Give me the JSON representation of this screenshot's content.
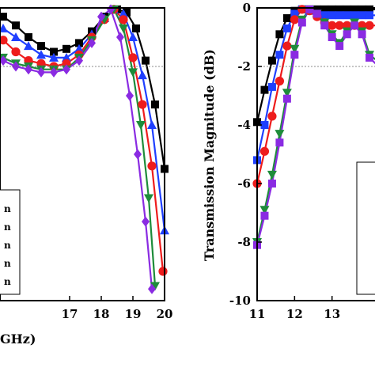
{
  "chart_data": [
    {
      "type": "line",
      "panel": "left",
      "xlabel": "GHz)",
      "ylabel": "",
      "xlim": [
        14.8,
        20.0
      ],
      "ylim": [
        -10,
        0
      ],
      "x_ticks": [
        17,
        18,
        19,
        20
      ],
      "x_tick_labels": [
        "17",
        "18",
        "19",
        "20"
      ],
      "reference_line_y": -2,
      "legend_placement": "lower-left",
      "legend_entries": [
        "n",
        "n",
        "n",
        "n",
        "n"
      ],
      "series": [
        {
          "color": "#000000",
          "marker": "square",
          "x": [
            14.9,
            15.3,
            15.7,
            16.1,
            16.5,
            16.9,
            17.3,
            17.7,
            18.1,
            18.5,
            18.8,
            19.1,
            19.4,
            19.7,
            20.0
          ],
          "y": [
            -0.3,
            -0.6,
            -1.0,
            -1.3,
            -1.5,
            -1.4,
            -1.2,
            -0.8,
            -0.3,
            -0.05,
            -0.15,
            -0.7,
            -1.8,
            -3.3,
            -5.5
          ]
        },
        {
          "color": "#1f3fff",
          "marker": "triangle-up",
          "x": [
            14.9,
            15.3,
            15.7,
            16.1,
            16.5,
            16.9,
            17.3,
            17.7,
            18.1,
            18.4,
            18.7,
            19.0,
            19.3,
            19.6,
            20.0
          ],
          "y": [
            -0.7,
            -1.0,
            -1.3,
            -1.6,
            -1.7,
            -1.7,
            -1.4,
            -0.9,
            -0.35,
            -0.05,
            -0.2,
            -1.0,
            -2.3,
            -4.0,
            -7.6
          ]
        },
        {
          "color": "#ee1c1c",
          "marker": "circle",
          "x": [
            14.9,
            15.3,
            15.7,
            16.1,
            16.5,
            16.9,
            17.3,
            17.7,
            18.1,
            18.4,
            18.7,
            19.0,
            19.3,
            19.6,
            19.95
          ],
          "y": [
            -1.1,
            -1.5,
            -1.8,
            -1.9,
            -2.0,
            -1.9,
            -1.6,
            -1.0,
            -0.4,
            -0.05,
            -0.4,
            -1.7,
            -3.3,
            -5.4,
            -9.0
          ]
        },
        {
          "color": "#1e8c3a",
          "marker": "triangle-down",
          "x": [
            14.9,
            15.3,
            15.7,
            16.1,
            16.5,
            16.9,
            17.3,
            17.7,
            18.1,
            18.4,
            18.7,
            19.0,
            19.25,
            19.5,
            19.7
          ],
          "y": [
            -1.7,
            -1.9,
            -2.0,
            -2.1,
            -2.1,
            -2.1,
            -1.7,
            -1.1,
            -0.4,
            -0.05,
            -0.7,
            -2.2,
            -4.0,
            -6.5,
            -9.5
          ]
        },
        {
          "color": "#8a2be2",
          "marker": "diamond",
          "x": [
            14.9,
            15.3,
            15.7,
            16.1,
            16.5,
            16.9,
            17.3,
            17.7,
            18.0,
            18.3,
            18.6,
            18.9,
            19.15,
            19.4,
            19.6
          ],
          "y": [
            -1.8,
            -2.0,
            -2.1,
            -2.2,
            -2.2,
            -2.1,
            -1.8,
            -1.2,
            -0.3,
            -0.05,
            -1.0,
            -3.0,
            -5.0,
            -7.3,
            -9.6
          ]
        }
      ]
    },
    {
      "type": "line",
      "panel": "right",
      "xlabel": "",
      "ylabel": "Transmission  Magnitude (dB)",
      "xlim": [
        11,
        14.4
      ],
      "ylim": [
        -10,
        0
      ],
      "x_ticks": [
        11,
        12,
        13
      ],
      "x_tick_labels": [
        "11",
        "12",
        "13"
      ],
      "y_ticks": [
        0,
        -2,
        -4,
        -6,
        -8,
        -10
      ],
      "y_tick_labels": [
        "0",
        "-2",
        "-4",
        "-6",
        "-8",
        "-10"
      ],
      "reference_line_y": -2,
      "series": [
        {
          "color": "#000000",
          "marker": "square",
          "x": [
            11.0,
            11.2,
            11.4,
            11.6,
            11.8,
            12.0,
            12.2,
            12.4,
            12.6,
            12.8,
            13.0,
            13.2,
            13.4,
            13.6,
            13.8,
            14.0,
            14.4
          ],
          "y": [
            -3.9,
            -2.8,
            -1.8,
            -0.9,
            -0.35,
            -0.1,
            -0.05,
            -0.05,
            -0.05,
            -0.05,
            -0.05,
            -0.05,
            -0.05,
            -0.05,
            -0.05,
            -0.05,
            -0.05
          ]
        },
        {
          "color": "#1f3fff",
          "marker": "square",
          "x": [
            11.0,
            11.2,
            11.4,
            11.6,
            11.8,
            12.0,
            12.2,
            12.4,
            12.6,
            12.8,
            13.0,
            13.2,
            13.4,
            13.6,
            13.8,
            14.0,
            14.4
          ],
          "y": [
            -5.2,
            -4.0,
            -2.7,
            -1.6,
            -0.7,
            -0.2,
            -0.05,
            -0.1,
            -0.2,
            -0.25,
            -0.25,
            -0.25,
            -0.25,
            -0.25,
            -0.25,
            -0.25,
            -0.25
          ]
        },
        {
          "color": "#ee1c1c",
          "marker": "circle",
          "x": [
            11.0,
            11.2,
            11.4,
            11.6,
            11.8,
            12.0,
            12.2,
            12.4,
            12.6,
            12.8,
            13.0,
            13.2,
            13.4,
            13.6,
            13.8,
            14.0,
            14.4
          ],
          "y": [
            -6.0,
            -4.9,
            -3.7,
            -2.5,
            -1.3,
            -0.4,
            -0.05,
            -0.1,
            -0.3,
            -0.5,
            -0.6,
            -0.6,
            -0.6,
            -0.6,
            -0.6,
            -0.6,
            -0.6
          ]
        },
        {
          "color": "#1e8c3a",
          "marker": "triangle-down",
          "x": [
            11.0,
            11.2,
            11.4,
            11.6,
            11.8,
            12.0,
            12.2,
            12.4,
            12.6,
            12.8,
            13.0,
            13.2,
            13.4,
            13.6,
            13.8,
            14.0,
            14.4
          ],
          "y": [
            -8.0,
            -6.9,
            -5.7,
            -4.3,
            -2.9,
            -1.4,
            -0.4,
            -0.05,
            -0.2,
            -0.5,
            -0.9,
            -1.2,
            -0.8,
            -0.5,
            -0.8,
            -1.6,
            -2.0
          ]
        },
        {
          "color": "#8a2be2",
          "marker": "square",
          "x": [
            11.0,
            11.2,
            11.4,
            11.6,
            11.8,
            12.0,
            12.2,
            12.4,
            12.6,
            12.8,
            13.0,
            13.2,
            13.4,
            13.6,
            13.8,
            14.0,
            14.4
          ],
          "y": [
            -8.1,
            -7.1,
            -6.0,
            -4.6,
            -3.1,
            -1.6,
            -0.5,
            -0.05,
            -0.2,
            -0.6,
            -1.0,
            -1.3,
            -0.9,
            -0.6,
            -0.9,
            -1.7,
            -2.2
          ]
        }
      ]
    }
  ]
}
